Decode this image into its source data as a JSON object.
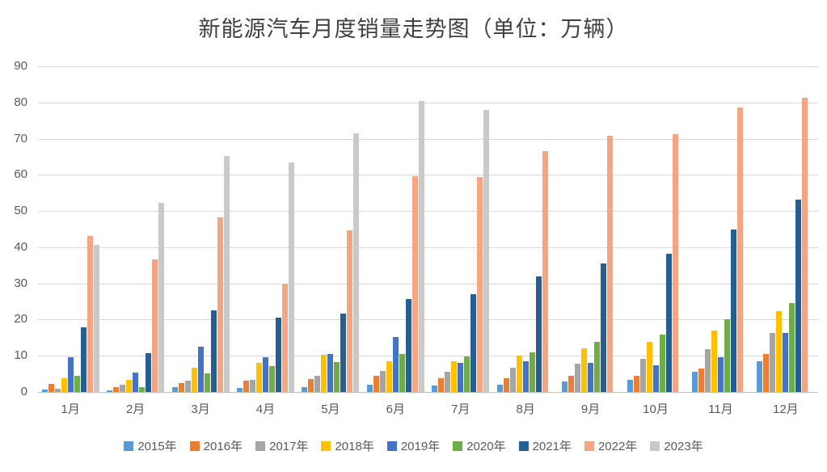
{
  "chart": {
    "title": "新能源汽车月度销量走势图（单位：万辆）"
  },
  "chart_data": {
    "type": "bar",
    "title": "新能源汽车月度销量走势图（单位：万辆）",
    "xlabel": "",
    "ylabel": "",
    "ylim": [
      0,
      90
    ],
    "ytick_step": 10,
    "grid": true,
    "legend_position": "bottom",
    "categories": [
      "1月",
      "2月",
      "3月",
      "4月",
      "5月",
      "6月",
      "7月",
      "8月",
      "9月",
      "10月",
      "11月",
      "12月"
    ],
    "series": [
      {
        "name": "2015年",
        "color": "#5B9BD5",
        "values": [
          0.7,
          0.5,
          1.4,
          1.1,
          1.4,
          2.0,
          1.8,
          2.0,
          2.8,
          3.4,
          5.6,
          8.4
        ]
      },
      {
        "name": "2016年",
        "color": "#ED7D31",
        "values": [
          2.2,
          1.3,
          2.5,
          3.2,
          3.5,
          4.4,
          3.8,
          3.7,
          4.4,
          4.4,
          6.4,
          10.4
        ]
      },
      {
        "name": "2017年",
        "color": "#A5A5A5",
        "values": [
          0.8,
          2.0,
          3.1,
          3.4,
          4.5,
          5.9,
          5.6,
          6.8,
          7.8,
          9.1,
          11.9,
          16.2
        ]
      },
      {
        "name": "2018年",
        "color": "#FFC000",
        "values": [
          3.8,
          3.4,
          6.8,
          8.1,
          10.2,
          8.4,
          8.4,
          10.1,
          12.1,
          13.8,
          16.9,
          22.4
        ]
      },
      {
        "name": "2019年",
        "color": "#4472C4",
        "values": [
          9.5,
          5.3,
          12.6,
          9.7,
          10.4,
          15.2,
          8.0,
          8.5,
          8.0,
          7.4,
          9.5,
          16.2
        ]
      },
      {
        "name": "2020年",
        "color": "#70AD47",
        "values": [
          4.5,
          1.3,
          5.2,
          7.2,
          8.2,
          10.4,
          9.8,
          10.9,
          13.8,
          15.9,
          20.0,
          24.6
        ]
      },
      {
        "name": "2021年",
        "color": "#255E91",
        "values": [
          17.9,
          10.8,
          22.6,
          20.6,
          21.7,
          25.6,
          27.1,
          32.0,
          35.6,
          38.2,
          44.9,
          53.1
        ]
      },
      {
        "name": "2022年",
        "color": "#F4A583",
        "values": [
          43.1,
          36.6,
          48.3,
          29.9,
          44.7,
          59.6,
          59.3,
          66.5,
          70.7,
          71.2,
          78.5,
          81.3
        ]
      },
      {
        "name": "2023年",
        "color": "#C9C9C9",
        "values": [
          40.6,
          52.3,
          65.1,
          63.5,
          71.5,
          80.5,
          77.9,
          null,
          null,
          null,
          null,
          null
        ]
      }
    ]
  }
}
